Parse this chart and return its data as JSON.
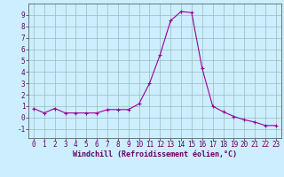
{
  "x": [
    0,
    1,
    2,
    3,
    4,
    5,
    6,
    7,
    8,
    9,
    10,
    11,
    12,
    13,
    14,
    15,
    16,
    17,
    18,
    19,
    20,
    21,
    22,
    23
  ],
  "y": [
    0.8,
    0.4,
    0.8,
    0.4,
    0.4,
    0.4,
    0.4,
    0.7,
    0.7,
    0.7,
    1.2,
    3.0,
    5.5,
    8.5,
    9.3,
    9.2,
    4.3,
    1.0,
    0.5,
    0.1,
    -0.2,
    -0.4,
    -0.7,
    -0.7
  ],
  "line_color": "#990099",
  "marker": "+",
  "marker_size": 3,
  "bg_color": "#cceeff",
  "grid_color": "#99bbbb",
  "xlabel": "Windchill (Refroidissement éolien,°C)",
  "xlim": [
    -0.5,
    23.5
  ],
  "ylim": [
    -1.8,
    10.0
  ],
  "yticks": [
    -1,
    0,
    1,
    2,
    3,
    4,
    5,
    6,
    7,
    8,
    9
  ],
  "xticks": [
    0,
    1,
    2,
    3,
    4,
    5,
    6,
    7,
    8,
    9,
    10,
    11,
    12,
    13,
    14,
    15,
    16,
    17,
    18,
    19,
    20,
    21,
    22,
    23
  ],
  "label_fontsize": 5.5,
  "xlabel_fontsize": 6.0,
  "text_color": "#660066"
}
